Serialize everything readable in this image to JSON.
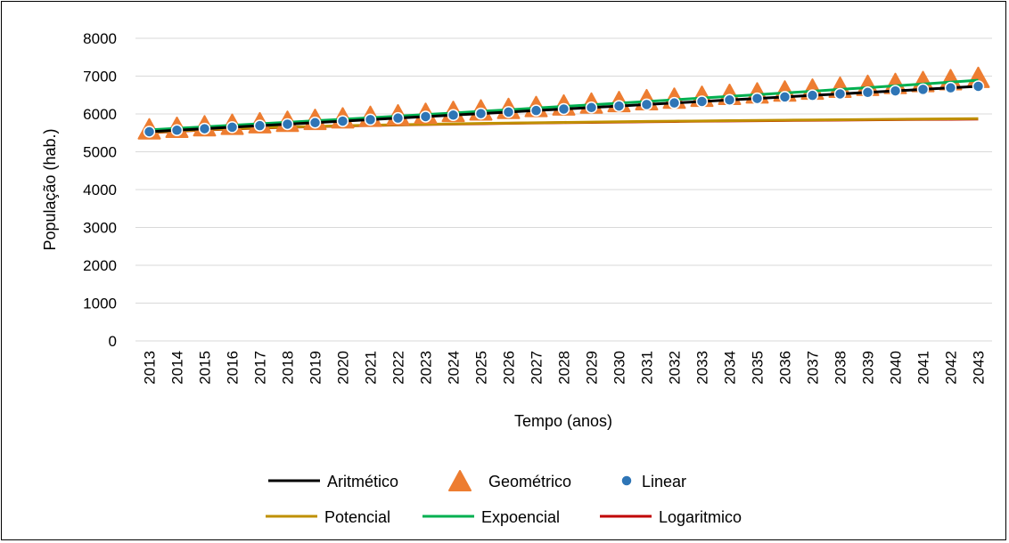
{
  "chart_data": {
    "type": "line",
    "xlabel": "Tempo (anos)",
    "ylabel": "População (hab.)",
    "ylim": [
      0,
      8000
    ],
    "yticks": [
      0,
      1000,
      2000,
      3000,
      4000,
      5000,
      6000,
      7000,
      8000
    ],
    "grid": "horizontal",
    "legend_position": "bottom",
    "x": [
      2013,
      2014,
      2015,
      2016,
      2017,
      2018,
      2019,
      2020,
      2021,
      2022,
      2023,
      2024,
      2025,
      2026,
      2027,
      2028,
      2029,
      2030,
      2031,
      2032,
      2033,
      2034,
      2035,
      2036,
      2037,
      2038,
      2039,
      2040,
      2041,
      2042,
      2043
    ],
    "series": [
      {
        "name": "Aritmético",
        "style": "line",
        "color": "#000000",
        "values": [
          5530,
          5570,
          5610,
          5650,
          5690,
          5730,
          5770,
          5810,
          5850,
          5890,
          5930,
          5970,
          6010,
          6050,
          6090,
          6130,
          6170,
          6210,
          6250,
          6290,
          6330,
          6370,
          6410,
          6450,
          6490,
          6530,
          6570,
          6610,
          6650,
          6690,
          6730
        ]
      },
      {
        "name": "Geométrico",
        "style": "triangle-marker",
        "color": "#ED7D31",
        "values": [
          5560,
          5600,
          5640,
          5680,
          5720,
          5760,
          5810,
          5850,
          5890,
          5930,
          5970,
          6020,
          6060,
          6100,
          6150,
          6190,
          6240,
          6280,
          6330,
          6370,
          6420,
          6470,
          6510,
          6560,
          6610,
          6660,
          6710,
          6760,
          6810,
          6860,
          6920
        ]
      },
      {
        "name": "Linear",
        "style": "circle-marker",
        "color": "#2E75B6",
        "values": [
          5530,
          5570,
          5610,
          5650,
          5690,
          5730,
          5770,
          5810,
          5850,
          5890,
          5930,
          5970,
          6010,
          6050,
          6090,
          6130,
          6170,
          6210,
          6250,
          6290,
          6330,
          6370,
          6410,
          6450,
          6490,
          6530,
          6570,
          6610,
          6650,
          6690,
          6730
        ]
      },
      {
        "name": "Potencial",
        "style": "line",
        "color": "#BF9000",
        "values": [
          5510,
          5550,
          5585,
          5610,
          5635,
          5655,
          5672,
          5688,
          5702,
          5715,
          5727,
          5738,
          5749,
          5759,
          5768,
          5777,
          5786,
          5794,
          5802,
          5809,
          5816,
          5823,
          5830,
          5836,
          5842,
          5848,
          5854,
          5860,
          5865,
          5870,
          5875
        ]
      },
      {
        "name": "Expoencial",
        "style": "line",
        "color": "#00B050",
        "values": [
          5580,
          5620,
          5660,
          5700,
          5740,
          5780,
          5820,
          5860,
          5900,
          5940,
          5985,
          6025,
          6070,
          6110,
          6155,
          6200,
          6240,
          6285,
          6330,
          6375,
          6420,
          6465,
          6510,
          6555,
          6600,
          6650,
          6695,
          6745,
          6790,
          6840,
          6890
        ]
      },
      {
        "name": "Logaritmico",
        "style": "line",
        "color": "#C00000",
        "values": [
          5500,
          5540,
          5575,
          5603,
          5627,
          5648,
          5665,
          5681,
          5695,
          5708,
          5720,
          5731,
          5742,
          5752,
          5761,
          5770,
          5778,
          5786,
          5794,
          5801,
          5808,
          5815,
          5821,
          5827,
          5833,
          5839,
          5845,
          5850,
          5855,
          5860,
          5865
        ]
      }
    ]
  }
}
